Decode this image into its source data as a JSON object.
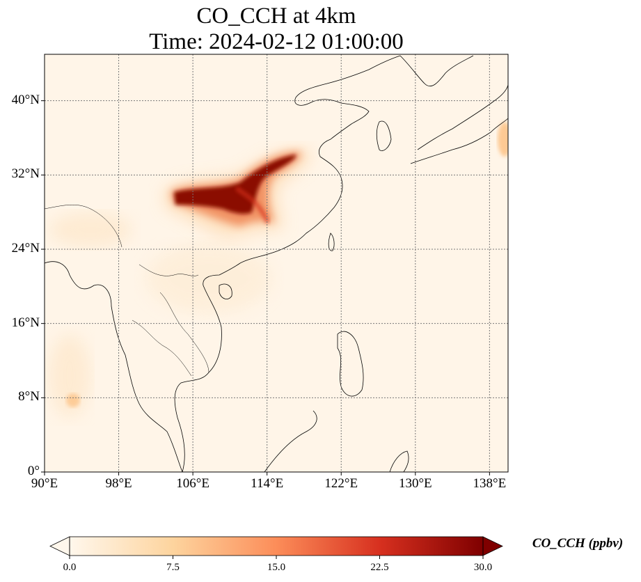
{
  "title_line1": "CO_CCH at 4km",
  "title_line2": "Time: 2024-02-12 01:00:00",
  "map": {
    "lon_range": [
      90,
      140
    ],
    "lat_range": [
      0,
      45
    ],
    "gridlines": "dotted",
    "lat_ticks": [
      {
        "value": 0,
        "label": "0°"
      },
      {
        "value": 8,
        "label": "8°N"
      },
      {
        "value": 16,
        "label": "16°N"
      },
      {
        "value": 24,
        "label": "24°N"
      },
      {
        "value": 32,
        "label": "32°N"
      },
      {
        "value": 40,
        "label": "40°N"
      }
    ],
    "lon_ticks": [
      {
        "value": 90,
        "label": "90°E"
      },
      {
        "value": 98,
        "label": "98°E"
      },
      {
        "value": 106,
        "label": "106°E"
      },
      {
        "value": 114,
        "label": "114°E"
      },
      {
        "value": 122,
        "label": "122°E"
      },
      {
        "value": 130,
        "label": "130°E"
      },
      {
        "value": 138,
        "label": "138°E"
      }
    ]
  },
  "colorbar": {
    "label": "CO_CCH (ppbv)",
    "min": 0,
    "max": 30,
    "extend": "both",
    "colormap": "OrRd",
    "colors": [
      "#fff7ec",
      "#fdd49e",
      "#fc8d59",
      "#d7301f",
      "#7f0000"
    ],
    "ticks": [
      {
        "value": 0,
        "label": "0.0"
      },
      {
        "value": 7.5,
        "label": "7.5"
      },
      {
        "value": 15,
        "label": "15.0"
      },
      {
        "value": 22.5,
        "label": "22.5"
      },
      {
        "value": 30,
        "label": "30.0"
      }
    ]
  }
}
